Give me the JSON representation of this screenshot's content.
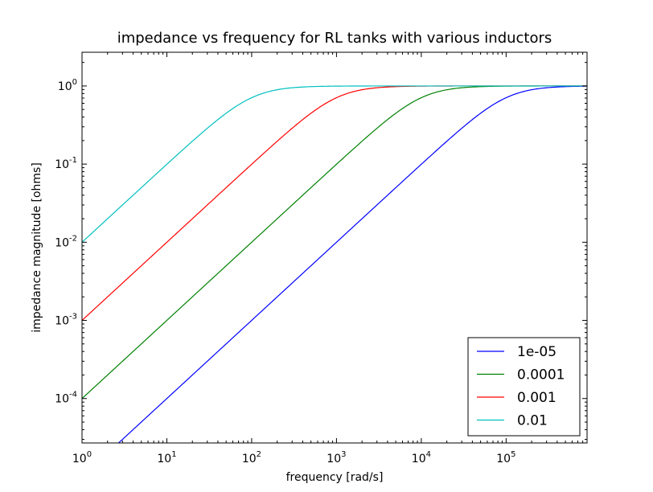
{
  "chart_data": {
    "type": "line",
    "title": "impedance vs frequency for RL tanks with various inductors",
    "xlabel": "frequency [rad/s]",
    "ylabel": "impedance magnitude [ohms]",
    "xscale": "log",
    "yscale": "log",
    "xlim": [
      1,
      900000
    ],
    "ylim": [
      2.7e-05,
      2.7
    ],
    "xticks": [
      {
        "value": 1,
        "base": "10",
        "exp": "0"
      },
      {
        "value": 10,
        "base": "10",
        "exp": "1"
      },
      {
        "value": 100,
        "base": "10",
        "exp": "2"
      },
      {
        "value": 1000,
        "base": "10",
        "exp": "3"
      },
      {
        "value": 10000,
        "base": "10",
        "exp": "4"
      },
      {
        "value": 100000,
        "base": "10",
        "exp": "5"
      }
    ],
    "yticks": [
      {
        "value": 0.0001,
        "base": "10",
        "exp": "-4"
      },
      {
        "value": 0.001,
        "base": "10",
        "exp": "-3"
      },
      {
        "value": 0.01,
        "base": "10",
        "exp": "-2"
      },
      {
        "value": 0.1,
        "base": "10",
        "exp": "-1"
      },
      {
        "value": 1,
        "base": "10",
        "exp": "0"
      }
    ],
    "resistance": 1,
    "legend_location": "lower-right",
    "series": [
      {
        "name": "1e-05",
        "inductance": 1e-05,
        "color": "#0000ff"
      },
      {
        "name": "0.0001",
        "inductance": 0.0001,
        "color": "#008000"
      },
      {
        "name": "0.001",
        "inductance": 0.001,
        "color": "#ff0000"
      },
      {
        "name": "0.01",
        "inductance": 0.01,
        "color": "#00bfbf"
      }
    ]
  }
}
